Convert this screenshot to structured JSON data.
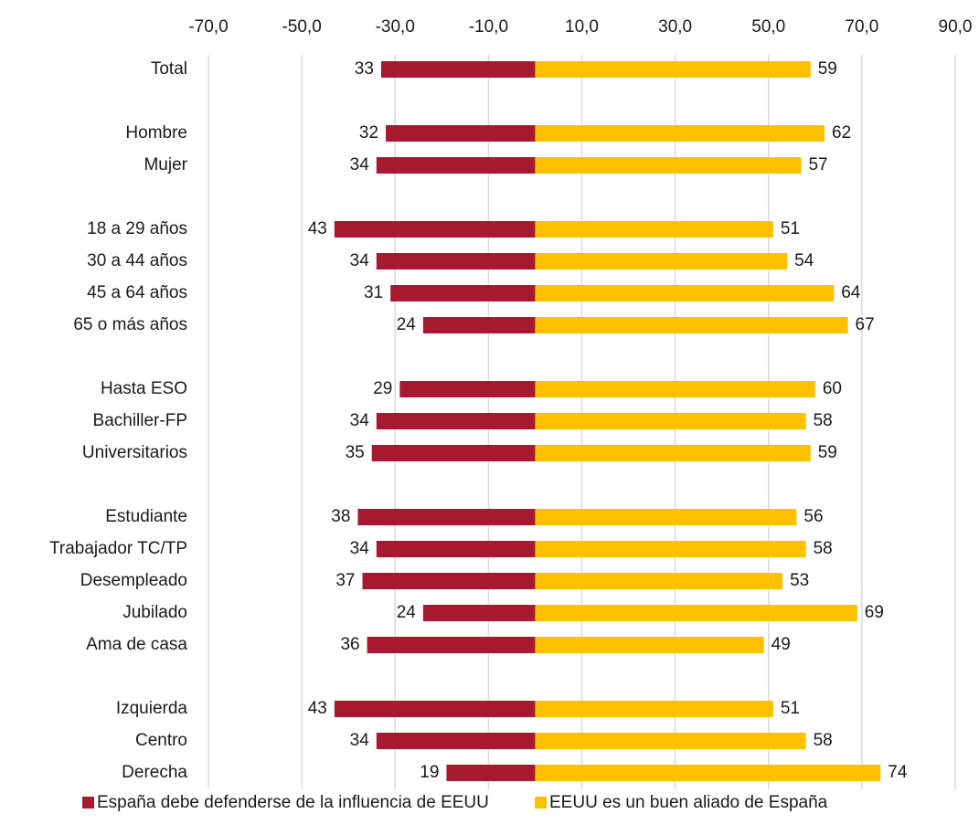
{
  "chart_data": {
    "type": "diverging_bar",
    "categories": [
      "Total",
      null,
      "Hombre",
      "Mujer",
      null,
      "18 a 29 años",
      "30 a 44 años",
      "45 a 64 años",
      "65 o más años",
      null,
      "Hasta ESO",
      "Bachiller-FP",
      "Universitarios",
      null,
      "Estudiante",
      "Trabajador TC/TP",
      "Desempleado",
      "Jubilado",
      "Ama de casa",
      null,
      "Izquierda",
      "Centro",
      "Derecha"
    ],
    "series": [
      {
        "name": "España debe defenderse de la influencia de EEUU",
        "color": "#a6192e",
        "values": [
          -33,
          null,
          -32,
          -34,
          null,
          -43,
          -34,
          -31,
          -24,
          null,
          -29,
          -34,
          -35,
          null,
          -38,
          -34,
          -37,
          -24,
          -36,
          null,
          -43,
          -34,
          -19
        ],
        "value_labels": [
          "33",
          null,
          "32",
          "34",
          null,
          "43",
          "34",
          "31",
          "24",
          null,
          "29",
          "34",
          "35",
          null,
          "38",
          "34",
          "37",
          "24",
          "36",
          null,
          "43",
          "34",
          "19"
        ]
      },
      {
        "name": "EEUU es un buen aliado de España",
        "color": "#ffc000",
        "values": [
          59,
          null,
          62,
          57,
          null,
          51,
          54,
          64,
          67,
          null,
          60,
          58,
          59,
          null,
          56,
          58,
          53,
          69,
          49,
          null,
          51,
          58,
          74
        ]
      }
    ],
    "xlim": [
      -70,
      90
    ],
    "xticks": [
      {
        "value": -70,
        "label": "-70,0"
      },
      {
        "value": -50,
        "label": "-50,0"
      },
      {
        "value": -30,
        "label": "-30,0"
      },
      {
        "value": -10,
        "label": "-10,0"
      },
      {
        "value": 10,
        "label": "10,0"
      },
      {
        "value": 30,
        "label": "30,0"
      },
      {
        "value": 50,
        "label": "50,0"
      },
      {
        "value": 70,
        "label": "70,0"
      },
      {
        "value": 90,
        "label": "90,0"
      }
    ],
    "grid": true
  }
}
